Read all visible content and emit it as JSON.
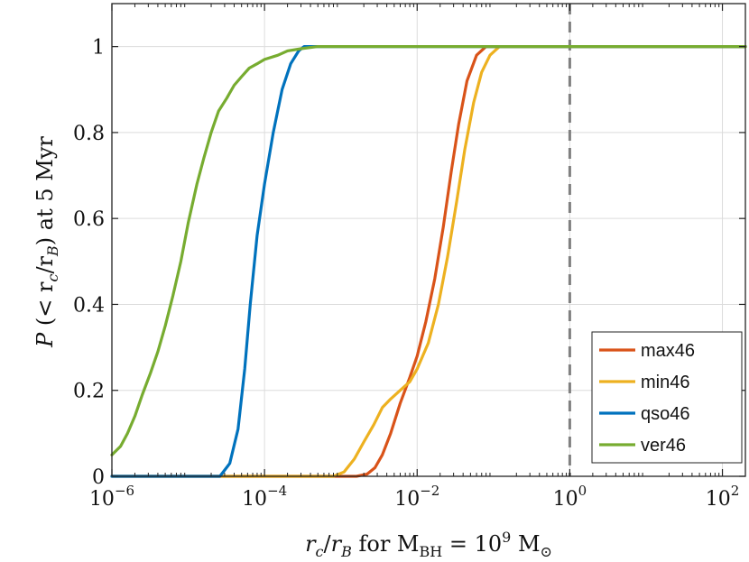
{
  "chart_data": {
    "type": "line",
    "xscale": "log",
    "xlim": [
      1e-06,
      200
    ],
    "ylim": [
      0,
      1.1
    ],
    "xticks": [
      {
        "value": 1e-06,
        "base": "10",
        "exp": "−6"
      },
      {
        "value": 0.0001,
        "base": "10",
        "exp": "−4"
      },
      {
        "value": 0.01,
        "base": "10",
        "exp": "−2"
      },
      {
        "value": 1,
        "base": "10",
        "exp": "0"
      },
      {
        "value": 100,
        "base": "10",
        "exp": "2"
      }
    ],
    "yticks": [
      {
        "value": 0,
        "label": "0"
      },
      {
        "value": 0.2,
        "label": "0.2"
      },
      {
        "value": 0.4,
        "label": "0.4"
      },
      {
        "value": 0.6,
        "label": "0.6"
      },
      {
        "value": 0.8,
        "label": "0.8"
      },
      {
        "value": 1,
        "label": "1"
      }
    ],
    "grid": true,
    "xlabel": "r_c/r_B for M_BH = 10^9 M_⊙",
    "ylabel": "P(< r_c/r_B) at 5 Myr",
    "xlabel_parts": {
      "r": "r",
      "c": "c",
      "slash": "/",
      "B": "B",
      "for": " for M",
      "BH": "BH",
      "eq": " = 10",
      "nine": "9",
      "msun": " M",
      "sun": "⊙"
    },
    "ylabel_parts": {
      "P": "P",
      "lt": " (< r",
      "c": "c",
      "slash": "/r",
      "B": "B",
      "rest": ") at 5 Myr"
    },
    "vline": {
      "x": 1,
      "style": "dashed",
      "color": "#808080"
    },
    "legend_location": "bottom-right",
    "series": [
      {
        "name": "max46",
        "color": "#D95319",
        "points": [
          [
            1e-06,
            0
          ],
          [
            0.001,
            0
          ],
          [
            0.0016,
            0
          ],
          [
            0.0022,
            0.005
          ],
          [
            0.0028,
            0.02
          ],
          [
            0.0035,
            0.05
          ],
          [
            0.0045,
            0.1
          ],
          [
            0.006,
            0.17
          ],
          [
            0.008,
            0.23
          ],
          [
            0.01,
            0.28
          ],
          [
            0.013,
            0.36
          ],
          [
            0.017,
            0.46
          ],
          [
            0.022,
            0.58
          ],
          [
            0.028,
            0.71
          ],
          [
            0.035,
            0.82
          ],
          [
            0.045,
            0.92
          ],
          [
            0.06,
            0.98
          ],
          [
            0.08,
            1
          ],
          [
            200,
            1
          ]
        ]
      },
      {
        "name": "min46",
        "color": "#EDB120",
        "points": [
          [
            1e-06,
            0
          ],
          [
            0.0008,
            0
          ],
          [
            0.0011,
            0.01
          ],
          [
            0.0015,
            0.04
          ],
          [
            0.002,
            0.08
          ],
          [
            0.0027,
            0.12
          ],
          [
            0.0035,
            0.16
          ],
          [
            0.0045,
            0.18
          ],
          [
            0.006,
            0.2
          ],
          [
            0.008,
            0.22
          ],
          [
            0.01,
            0.25
          ],
          [
            0.014,
            0.31
          ],
          [
            0.019,
            0.4
          ],
          [
            0.025,
            0.51
          ],
          [
            0.033,
            0.64
          ],
          [
            0.042,
            0.76
          ],
          [
            0.055,
            0.87
          ],
          [
            0.07,
            0.94
          ],
          [
            0.09,
            0.98
          ],
          [
            0.12,
            1
          ],
          [
            200,
            1
          ]
        ]
      },
      {
        "name": "qso46",
        "color": "#0072BD",
        "points": [
          [
            1e-06,
            0
          ],
          [
            2.6e-05,
            0
          ],
          [
            3.5e-05,
            0.03
          ],
          [
            4.5e-05,
            0.11
          ],
          [
            5.5e-05,
            0.25
          ],
          [
            6.5e-05,
            0.4
          ],
          [
            8e-05,
            0.56
          ],
          [
            0.0001,
            0.68
          ],
          [
            0.00013,
            0.8
          ],
          [
            0.00017,
            0.9
          ],
          [
            0.00022,
            0.96
          ],
          [
            0.00028,
            0.99
          ],
          [
            0.00033,
            1
          ],
          [
            200,
            1
          ]
        ]
      },
      {
        "name": "ver46",
        "color": "#77AC30",
        "points": [
          [
            1e-06,
            0.05
          ],
          [
            1.3e-06,
            0.07
          ],
          [
            1.6e-06,
            0.1
          ],
          [
            2e-06,
            0.14
          ],
          [
            2.5e-06,
            0.19
          ],
          [
            3.2e-06,
            0.24
          ],
          [
            4e-06,
            0.29
          ],
          [
            5e-06,
            0.35
          ],
          [
            6.3e-06,
            0.42
          ],
          [
            8e-06,
            0.5
          ],
          [
            1e-05,
            0.59
          ],
          [
            1.3e-05,
            0.68
          ],
          [
            1.6e-05,
            0.74
          ],
          [
            2e-05,
            0.8
          ],
          [
            2.5e-05,
            0.85
          ],
          [
            3.2e-05,
            0.88
          ],
          [
            4e-05,
            0.91
          ],
          [
            5e-05,
            0.93
          ],
          [
            6.3e-05,
            0.95
          ],
          [
            8e-05,
            0.96
          ],
          [
            0.0001,
            0.97
          ],
          [
            0.00015,
            0.98
          ],
          [
            0.0002,
            0.99
          ],
          [
            0.0003,
            0.995
          ],
          [
            0.0005,
            1
          ],
          [
            200,
            1
          ]
        ]
      }
    ]
  }
}
